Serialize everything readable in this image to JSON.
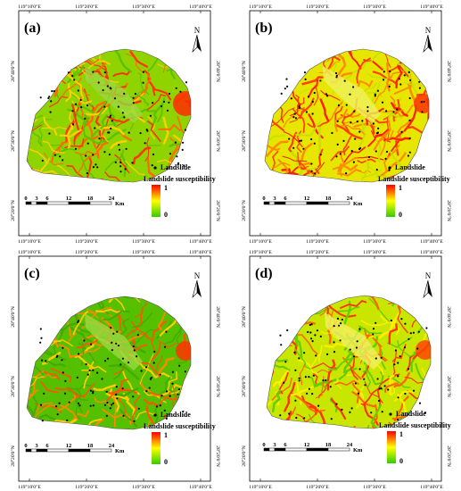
{
  "figure": {
    "panels": [
      {
        "label": "(a)",
        "variant": "a"
      },
      {
        "label": "(b)",
        "variant": "b"
      },
      {
        "label": "(c)",
        "variant": "c"
      },
      {
        "label": "(d)",
        "variant": "d"
      }
    ],
    "lon_ticks": [
      "119°10'0\"E",
      "119°20'0\"E",
      "119°30'0\"E",
      "119°40'0\"E"
    ],
    "lat_ticks": [
      "28°40'0\"N",
      "28°30'0\"N",
      "28°20'0\"N"
    ],
    "north_label": "N",
    "legend": {
      "point_label": "Landslide",
      "ramp_title": "Landslide susceptibility",
      "ramp_max": "1",
      "ramp_min": "0",
      "ramp_colors": [
        "#ff0000",
        "#ffff00",
        "#33cc00"
      ]
    },
    "scale_bar": {
      "ticks": [
        "0",
        "3",
        "6",
        "12",
        "18",
        "24"
      ],
      "unit": "Km"
    }
  }
}
